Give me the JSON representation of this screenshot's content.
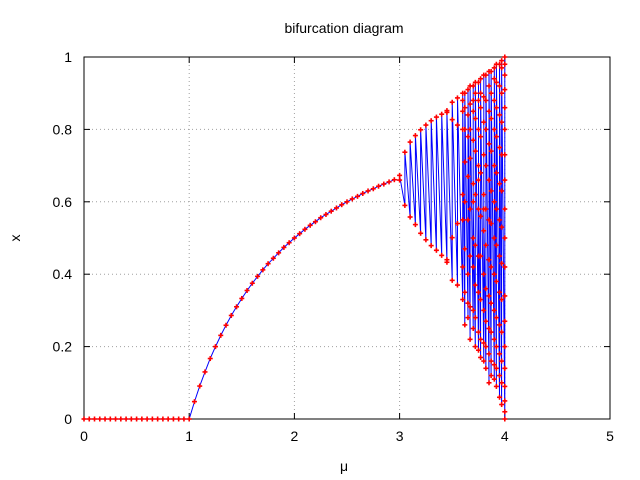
{
  "chart_data": {
    "type": "scatter",
    "title": "bifurcation diagram",
    "xlabel": "μ",
    "ylabel": "x",
    "xlim": [
      0,
      5
    ],
    "ylim": [
      0,
      1
    ],
    "xticks": [
      0,
      1,
      2,
      3,
      4,
      5
    ],
    "xtick_labels": [
      "0",
      "1",
      "2",
      "3",
      "4",
      "5"
    ],
    "yticks": [
      0,
      0.2,
      0.4,
      0.6,
      0.8,
      1
    ],
    "ytick_labels": [
      "0",
      "0.2",
      "0.4",
      "0.6",
      "0.8",
      "1"
    ],
    "grid": true,
    "legend": "none",
    "line_color": "#0000ff",
    "marker_color": "#ff0000",
    "marker": "cross",
    "series": [
      {
        "description_source": "logistic map x = μx(1−x), μ from 0 to 4 in steps of 0.05, steady-state samples per μ",
        "points": [
          [
            0.0,
            0
          ],
          [
            0.05,
            0
          ],
          [
            0.1,
            0
          ],
          [
            0.15,
            0
          ],
          [
            0.2,
            0
          ],
          [
            0.25,
            0
          ],
          [
            0.3,
            0
          ],
          [
            0.35,
            0
          ],
          [
            0.4,
            0
          ],
          [
            0.45,
            0
          ],
          [
            0.5,
            0
          ],
          [
            0.55,
            0
          ],
          [
            0.6,
            0
          ],
          [
            0.65,
            0
          ],
          [
            0.7,
            0
          ],
          [
            0.75,
            0
          ],
          [
            0.8,
            0
          ],
          [
            0.85,
            0
          ],
          [
            0.9,
            0
          ],
          [
            0.95,
            0
          ],
          [
            1.0,
            0
          ],
          [
            1.05,
            0.048
          ],
          [
            1.1,
            0.091
          ],
          [
            1.15,
            0.13
          ],
          [
            1.2,
            0.167
          ],
          [
            1.25,
            0.2
          ],
          [
            1.3,
            0.231
          ],
          [
            1.35,
            0.259
          ],
          [
            1.4,
            0.286
          ],
          [
            1.45,
            0.31
          ],
          [
            1.5,
            0.333
          ],
          [
            1.55,
            0.355
          ],
          [
            1.6,
            0.375
          ],
          [
            1.65,
            0.394
          ],
          [
            1.7,
            0.412
          ],
          [
            1.75,
            0.429
          ],
          [
            1.8,
            0.444
          ],
          [
            1.85,
            0.459
          ],
          [
            1.9,
            0.474
          ],
          [
            1.95,
            0.487
          ],
          [
            2.0,
            0.5
          ],
          [
            2.05,
            0.512
          ],
          [
            2.1,
            0.524
          ],
          [
            2.15,
            0.535
          ],
          [
            2.2,
            0.545
          ],
          [
            2.25,
            0.556
          ],
          [
            2.3,
            0.565
          ],
          [
            2.35,
            0.574
          ],
          [
            2.4,
            0.583
          ],
          [
            2.45,
            0.592
          ],
          [
            2.5,
            0.6
          ],
          [
            2.55,
            0.608
          ],
          [
            2.6,
            0.615
          ],
          [
            2.65,
            0.623
          ],
          [
            2.7,
            0.63
          ],
          [
            2.75,
            0.636
          ],
          [
            2.8,
            0.643
          ],
          [
            2.85,
            0.649
          ],
          [
            2.9,
            0.655
          ],
          [
            2.95,
            0.661
          ],
          [
            3.0,
            0.66
          ],
          [
            3.0,
            0.673
          ],
          [
            3.05,
            0.59
          ],
          [
            3.05,
            0.737
          ],
          [
            3.1,
            0.558
          ],
          [
            3.1,
            0.765
          ],
          [
            3.15,
            0.537
          ],
          [
            3.15,
            0.783
          ],
          [
            3.2,
            0.513
          ],
          [
            3.2,
            0.799
          ],
          [
            3.25,
            0.495
          ],
          [
            3.25,
            0.812
          ],
          [
            3.3,
            0.479
          ],
          [
            3.3,
            0.824
          ],
          [
            3.35,
            0.466
          ],
          [
            3.35,
            0.834
          ],
          [
            3.4,
            0.452
          ],
          [
            3.4,
            0.842
          ],
          [
            3.45,
            0.44
          ],
          [
            3.45,
            0.852
          ],
          [
            3.45,
            0.433
          ],
          [
            3.45,
            0.847
          ],
          [
            3.5,
            0.383
          ],
          [
            3.5,
            0.501
          ],
          [
            3.5,
            0.827
          ],
          [
            3.5,
            0.875
          ],
          [
            3.55,
            0.37
          ],
          [
            3.55,
            0.54
          ],
          [
            3.55,
            0.812
          ],
          [
            3.55,
            0.887
          ],
          [
            3.6,
            0.33
          ],
          [
            3.6,
            0.42
          ],
          [
            3.6,
            0.55
          ],
          [
            3.6,
            0.62
          ],
          [
            3.6,
            0.8
          ],
          [
            3.6,
            0.85
          ],
          [
            3.6,
            0.9
          ],
          [
            3.6,
            0.88
          ],
          [
            3.62,
            0.26
          ],
          [
            3.62,
            0.35
          ],
          [
            3.62,
            0.47
          ],
          [
            3.62,
            0.6
          ],
          [
            3.62,
            0.71
          ],
          [
            3.62,
            0.8
          ],
          [
            3.62,
            0.86
          ],
          [
            3.62,
            0.9
          ],
          [
            3.65,
            0.28
          ],
          [
            3.65,
            0.32
          ],
          [
            3.65,
            0.4
          ],
          [
            3.65,
            0.55
          ],
          [
            3.65,
            0.67
          ],
          [
            3.65,
            0.78
          ],
          [
            3.65,
            0.84
          ],
          [
            3.65,
            0.91
          ],
          [
            3.67,
            0.22
          ],
          [
            3.67,
            0.31
          ],
          [
            3.67,
            0.45
          ],
          [
            3.67,
            0.58
          ],
          [
            3.67,
            0.72
          ],
          [
            3.67,
            0.8
          ],
          [
            3.67,
            0.87
          ],
          [
            3.67,
            0.92
          ],
          [
            3.7,
            0.25
          ],
          [
            3.7,
            0.3
          ],
          [
            3.7,
            0.42
          ],
          [
            3.7,
            0.5
          ],
          [
            3.7,
            0.65
          ],
          [
            3.7,
            0.77
          ],
          [
            3.7,
            0.85
          ],
          [
            3.7,
            0.92
          ],
          [
            3.7,
            0.88
          ],
          [
            3.7,
            0.6
          ],
          [
            3.72,
            0.2
          ],
          [
            3.72,
            0.28
          ],
          [
            3.72,
            0.37
          ],
          [
            3.72,
            0.48
          ],
          [
            3.72,
            0.62
          ],
          [
            3.72,
            0.74
          ],
          [
            3.72,
            0.83
          ],
          [
            3.72,
            0.9
          ],
          [
            3.72,
            0.93
          ],
          [
            3.75,
            0.19
          ],
          [
            3.75,
            0.24
          ],
          [
            3.75,
            0.35
          ],
          [
            3.75,
            0.45
          ],
          [
            3.75,
            0.58
          ],
          [
            3.75,
            0.7
          ],
          [
            3.75,
            0.8
          ],
          [
            3.75,
            0.88
          ],
          [
            3.75,
            0.93
          ],
          [
            3.75,
            0.66
          ],
          [
            3.77,
            0.17
          ],
          [
            3.77,
            0.22
          ],
          [
            3.77,
            0.33
          ],
          [
            3.77,
            0.45
          ],
          [
            3.77,
            0.56
          ],
          [
            3.77,
            0.68
          ],
          [
            3.77,
            0.78
          ],
          [
            3.77,
            0.86
          ],
          [
            3.77,
            0.94
          ],
          [
            3.77,
            0.9
          ],
          [
            3.8,
            0.16
          ],
          [
            3.8,
            0.21
          ],
          [
            3.8,
            0.3
          ],
          [
            3.8,
            0.4
          ],
          [
            3.8,
            0.52
          ],
          [
            3.8,
            0.62
          ],
          [
            3.8,
            0.73
          ],
          [
            3.8,
            0.82
          ],
          [
            3.8,
            0.89
          ],
          [
            3.8,
            0.95
          ],
          [
            3.8,
            0.58
          ],
          [
            3.82,
            0.14
          ],
          [
            3.82,
            0.2
          ],
          [
            3.82,
            0.27
          ],
          [
            3.82,
            0.36
          ],
          [
            3.82,
            0.48
          ],
          [
            3.82,
            0.58
          ],
          [
            3.82,
            0.7
          ],
          [
            3.82,
            0.8
          ],
          [
            3.82,
            0.88
          ],
          [
            3.82,
            0.95
          ],
          [
            3.85,
            0.1
          ],
          [
            3.85,
            0.18
          ],
          [
            3.85,
            0.25
          ],
          [
            3.85,
            0.34
          ],
          [
            3.85,
            0.44
          ],
          [
            3.85,
            0.55
          ],
          [
            3.85,
            0.66
          ],
          [
            3.85,
            0.76
          ],
          [
            3.85,
            0.85
          ],
          [
            3.85,
            0.92
          ],
          [
            3.85,
            0.96
          ],
          [
            3.87,
            0.12
          ],
          [
            3.87,
            0.16
          ],
          [
            3.87,
            0.24
          ],
          [
            3.87,
            0.32
          ],
          [
            3.87,
            0.42
          ],
          [
            3.87,
            0.54
          ],
          [
            3.87,
            0.63
          ],
          [
            3.87,
            0.74
          ],
          [
            3.87,
            0.83
          ],
          [
            3.87,
            0.9
          ],
          [
            3.87,
            0.96
          ],
          [
            3.9,
            0.11
          ],
          [
            3.9,
            0.15
          ],
          [
            3.9,
            0.22
          ],
          [
            3.9,
            0.3
          ],
          [
            3.9,
            0.4
          ],
          [
            3.9,
            0.5
          ],
          [
            3.9,
            0.6
          ],
          [
            3.9,
            0.7
          ],
          [
            3.9,
            0.8
          ],
          [
            3.9,
            0.88
          ],
          [
            3.9,
            0.94
          ],
          [
            3.9,
            0.97
          ],
          [
            3.92,
            0.09
          ],
          [
            3.92,
            0.14
          ],
          [
            3.92,
            0.2
          ],
          [
            3.92,
            0.28
          ],
          [
            3.92,
            0.38
          ],
          [
            3.92,
            0.48
          ],
          [
            3.92,
            0.58
          ],
          [
            3.92,
            0.68
          ],
          [
            3.92,
            0.78
          ],
          [
            3.92,
            0.86
          ],
          [
            3.92,
            0.93
          ],
          [
            3.92,
            0.98
          ],
          [
            3.95,
            0.06
          ],
          [
            3.95,
            0.12
          ],
          [
            3.95,
            0.18
          ],
          [
            3.95,
            0.26
          ],
          [
            3.95,
            0.35
          ],
          [
            3.95,
            0.45
          ],
          [
            3.95,
            0.55
          ],
          [
            3.95,
            0.65
          ],
          [
            3.95,
            0.75
          ],
          [
            3.95,
            0.84
          ],
          [
            3.95,
            0.92
          ],
          [
            3.95,
            0.98
          ],
          [
            3.97,
            0.04
          ],
          [
            3.97,
            0.1
          ],
          [
            3.97,
            0.16
          ],
          [
            3.97,
            0.24
          ],
          [
            3.97,
            0.33
          ],
          [
            3.97,
            0.43
          ],
          [
            3.97,
            0.53
          ],
          [
            3.97,
            0.63
          ],
          [
            3.97,
            0.73
          ],
          [
            3.97,
            0.82
          ],
          [
            3.97,
            0.9
          ],
          [
            3.97,
            0.97
          ],
          [
            3.97,
            0.99
          ],
          [
            4.0,
            0.0
          ],
          [
            4.0,
            0.02
          ],
          [
            4.0,
            0.05
          ],
          [
            4.0,
            0.09
          ],
          [
            4.0,
            0.14
          ],
          [
            4.0,
            0.2
          ],
          [
            4.0,
            0.27
          ],
          [
            4.0,
            0.34
          ],
          [
            4.0,
            0.42
          ],
          [
            4.0,
            0.5
          ],
          [
            4.0,
            0.58
          ],
          [
            4.0,
            0.66
          ],
          [
            4.0,
            0.73
          ],
          [
            4.0,
            0.8
          ],
          [
            4.0,
            0.86
          ],
          [
            4.0,
            0.91
          ],
          [
            4.0,
            0.95
          ],
          [
            4.0,
            0.98
          ],
          [
            4.0,
            1.0
          ]
        ]
      }
    ]
  }
}
